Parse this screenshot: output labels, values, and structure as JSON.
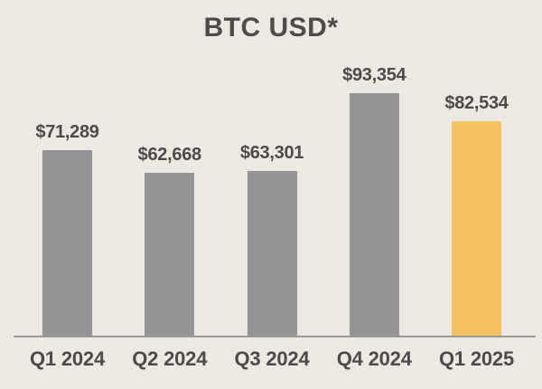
{
  "colors": {
    "background": "#ECE9E3",
    "bar_default": "#949494",
    "bar_highlight": "#F2C263",
    "text": "#4D4B48",
    "axis_line": "#9C9A96"
  },
  "chart_data": {
    "type": "bar",
    "title": "BTC USD*",
    "categories": [
      "Q1 2024",
      "Q2 2024",
      "Q3 2024",
      "Q4 2024",
      "Q1 2025"
    ],
    "values": [
      71289,
      62668,
      63301,
      93354,
      82534
    ],
    "value_labels": [
      "$71,289",
      "$62,668",
      "$63,301",
      "$93,354",
      "$82,534"
    ],
    "highlight_index": 4,
    "highlighted_category": "Q1 2025",
    "xlabel": "",
    "ylabel": "",
    "grid": false,
    "legend": false,
    "data_labels": true,
    "baseline": 0
  }
}
